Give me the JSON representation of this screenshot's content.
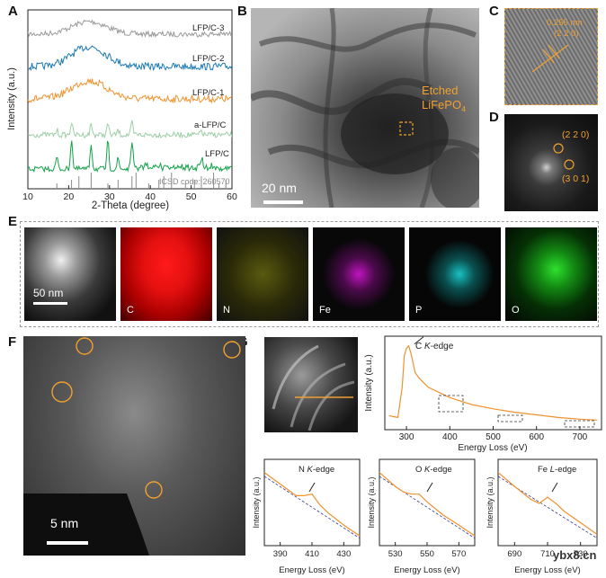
{
  "panels": {
    "A": "A",
    "B": "B",
    "C": "C",
    "D": "D",
    "E": "E",
    "F": "F",
    "G": "G"
  },
  "panelA": {
    "ylabel": "Intensity (a.u.)",
    "xlabel": "2-Theta (degree)",
    "icsd": "ICSD code: 260570",
    "series_labels": [
      "LFP/C-3",
      "LFP/C-2",
      "LFP/C-1",
      "a-LFP/C",
      "LFP/C"
    ],
    "colors": [
      "#9a9a9a",
      "#1b79b4",
      "#f0922e",
      "#9ccfa6",
      "#14a249"
    ]
  },
  "panelB": {
    "annotation_line1": "Etched",
    "annotation_line2": "LiFePO",
    "annotation_sub": "4",
    "scale": "20 nm"
  },
  "panelC": {
    "d_spacing": "0.255 nm",
    "plane": "(2 2 0)"
  },
  "panelD": {
    "spot1": "(2 2 0)",
    "spot2": "(3 0 1)"
  },
  "panelE": {
    "scale": "50 nm",
    "elements": [
      "C",
      "N",
      "Fe",
      "P",
      "O"
    ]
  },
  "panelF": {
    "scale": "5 nm"
  },
  "panelG": {
    "main_ylabel": "Intensity (a.u.)",
    "main_xlabel": "Energy Loss (eV)",
    "c_edge": "C",
    "k_italic": "K",
    "edge_suffix": "-edge",
    "l_italic": "L",
    "n_edge": "N",
    "o_edge": "O",
    "fe_edge": "Fe",
    "sub_ylabel": "Intensity (a.u.)",
    "sub_xlabel": "Energy Loss (eV)",
    "line_color": "#f0922e"
  },
  "watermark": "ybx8.cn",
  "chart_data": [
    {
      "type": "line",
      "id": "A",
      "xlabel": "2-Theta (degree)",
      "ylabel": "Intensity (a.u.)",
      "xlim": [
        10,
        60
      ],
      "xticks": [
        10,
        20,
        30,
        40,
        50,
        60
      ],
      "reference": "ICSD code: 260570",
      "reference_peaks": [
        17.1,
        20.7,
        22.5,
        25.5,
        29.6,
        32.1,
        35.5,
        36.5,
        39.6,
        42.1,
        43.3,
        45.2,
        48.6,
        50.8,
        52.5,
        55.5,
        56.8,
        58.5
      ],
      "series": [
        {
          "name": "LFP/C-3",
          "color": "#9a9a9a"
        },
        {
          "name": "LFP/C-2",
          "color": "#1b79b4"
        },
        {
          "name": "LFP/C-1",
          "color": "#f0922e"
        },
        {
          "name": "a-LFP/C",
          "color": "#9ccfa6"
        },
        {
          "name": "LFP/C",
          "color": "#14a249",
          "peaks": [
            [
              17.1,
              0.35
            ],
            [
              20.7,
              0.9
            ],
            [
              25.5,
              0.75
            ],
            [
              29.6,
              0.8
            ],
            [
              32.1,
              0.3
            ],
            [
              35.5,
              0.85
            ],
            [
              52.5,
              0.3
            ]
          ]
        }
      ]
    },
    {
      "type": "line",
      "id": "G-main",
      "xlabel": "Energy Loss (eV)",
      "ylabel": "Intensity (a.u.)",
      "xlim": [
        250,
        750
      ],
      "xticks": [
        300,
        400,
        500,
        600,
        700
      ],
      "annotation": "C K-edge",
      "x": [
        260,
        280,
        290,
        295,
        300,
        305,
        310,
        320,
        330,
        350,
        400,
        450,
        500,
        550,
        600,
        650,
        700,
        740
      ],
      "y": [
        0.12,
        0.1,
        0.45,
        0.82,
        0.9,
        0.93,
        0.85,
        0.62,
        0.55,
        0.45,
        0.33,
        0.25,
        0.2,
        0.16,
        0.13,
        0.1,
        0.08,
        0.07
      ]
    },
    {
      "type": "line",
      "id": "G-N",
      "annotation": "N K-edge",
      "xlabel": "Energy Loss (eV)",
      "xlim": [
        380,
        440
      ],
      "xticks": [
        390,
        410,
        430
      ],
      "x": [
        380,
        390,
        400,
        405,
        410,
        415,
        420,
        430,
        440
      ],
      "y": [
        0.9,
        0.75,
        0.6,
        0.6,
        0.62,
        0.48,
        0.38,
        0.22,
        0.08
      ]
    },
    {
      "type": "line",
      "id": "G-O",
      "annotation": "O K-edge",
      "xlabel": "Energy Loss (eV)",
      "xlim": [
        520,
        580
      ],
      "xticks": [
        530,
        550,
        570
      ],
      "x": [
        520,
        530,
        535,
        540,
        545,
        550,
        560,
        570,
        580
      ],
      "y": [
        0.9,
        0.72,
        0.65,
        0.62,
        0.62,
        0.52,
        0.35,
        0.22,
        0.08
      ]
    },
    {
      "type": "line",
      "id": "G-Fe",
      "annotation": "Fe L-edge",
      "xlabel": "Energy Loss (eV)",
      "xlim": [
        680,
        740
      ],
      "xticks": [
        690,
        710,
        730
      ],
      "x": [
        680,
        690,
        700,
        705,
        710,
        715,
        720,
        730,
        740
      ],
      "y": [
        0.9,
        0.72,
        0.55,
        0.5,
        0.58,
        0.5,
        0.4,
        0.25,
        0.1
      ]
    }
  ]
}
